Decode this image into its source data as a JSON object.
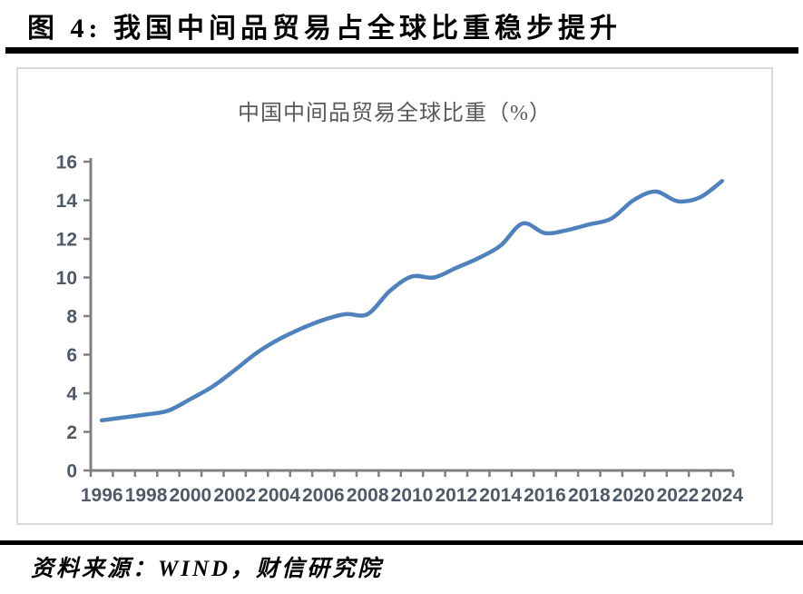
{
  "page": {
    "figure_title": "图 4:  我国中间品贸易占全球比重稳步提升",
    "source_note": "资料来源：WIND，财信研究院"
  },
  "chart_data": {
    "type": "line",
    "title": "中国中间品贸易全球比重（%）",
    "x": [
      1996,
      1997,
      1998,
      1999,
      2000,
      2001,
      2002,
      2003,
      2004,
      2005,
      2006,
      2007,
      2008,
      2009,
      2010,
      2011,
      2012,
      2013,
      2014,
      2015,
      2016,
      2017,
      2018,
      2019,
      2020,
      2021,
      2022,
      2023,
      2024
    ],
    "series": [
      {
        "name": "中国中间品贸易全球比重（%）",
        "values": [
          2.6,
          2.75,
          2.9,
          3.1,
          3.7,
          4.35,
          5.2,
          6.1,
          6.8,
          7.35,
          7.8,
          8.1,
          8.1,
          9.3,
          10.05,
          10.0,
          10.5,
          11.0,
          11.65,
          12.8,
          12.3,
          12.45,
          12.75,
          13.05,
          14.0,
          14.45,
          13.95,
          14.15,
          15.0
        ]
      }
    ],
    "xlabel": "",
    "ylabel": "",
    "ylim": [
      0,
      16
    ],
    "ytick_step": 2,
    "yticks": [
      0,
      2,
      4,
      6,
      8,
      10,
      12,
      14,
      16
    ],
    "xticks": [
      1996,
      1998,
      2000,
      2002,
      2004,
      2006,
      2008,
      2010,
      2012,
      2014,
      2016,
      2018,
      2020,
      2022,
      2024
    ],
    "grid": false,
    "legend_position": "none",
    "smooth": true,
    "colors": {
      "line": "#4f81bd",
      "axis": "#808080",
      "tick_labels": "#4f5a68",
      "chart_title": "#595959",
      "panel_border": "#d9d9d9",
      "rule": "#000000"
    }
  }
}
